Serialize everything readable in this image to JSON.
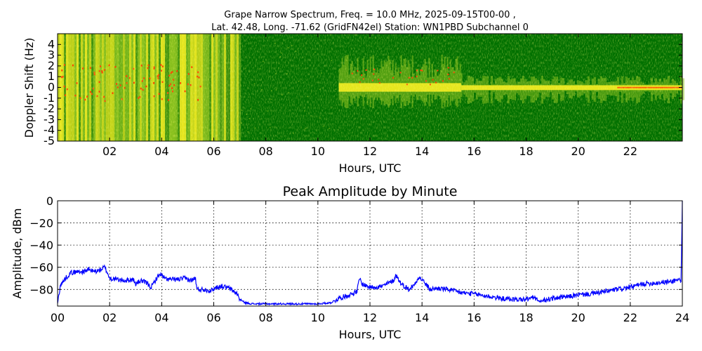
{
  "chart_data": [
    {
      "type": "heatmap",
      "title_lines": [
        "Grape Narrow Spectrum, Freq. = 10.0 MHz, 2025-09-15T00-00 ,",
        "Lat.  42.48, Long. -71.62 (GridFN42el) Station: WN1PBD Subchannel 0"
      ],
      "xlabel": "Hours, UTC",
      "ylabel": "Doppler Shift (Hz)",
      "xlim": [
        0,
        24
      ],
      "ylim": [
        -5,
        5
      ],
      "x_ticks": [
        2,
        4,
        6,
        8,
        10,
        12,
        14,
        16,
        18,
        20,
        22
      ],
      "x_tick_labels": [
        "02",
        "04",
        "06",
        "08",
        "10",
        "12",
        "14",
        "16",
        "18",
        "20",
        "22"
      ],
      "y_ticks": [
        4,
        3,
        2,
        1,
        0,
        -1,
        -2,
        -3,
        -4,
        -5
      ],
      "y_tick_labels": [
        "4",
        "3",
        "2",
        "1",
        "0",
        "-1",
        "-2",
        "-3",
        "-4",
        "-5"
      ],
      "colors": {
        "background": "#007000",
        "mid": "#8cc21e",
        "high": "#e6e61e",
        "peak": "#ff3c00"
      },
      "activity_segments": [
        {
          "start": 0.0,
          "end": 7.0,
          "level": "broadband high"
        },
        {
          "start": 7.0,
          "end": 10.8,
          "level": "quiet"
        },
        {
          "start": 10.8,
          "end": 15.5,
          "level": "moderate spread"
        },
        {
          "start": 15.5,
          "end": 24.0,
          "level": "narrow carrier near 0 Hz"
        }
      ]
    },
    {
      "type": "line",
      "title": "Peak Amplitude by Minute",
      "xlabel": "Hours, UTC",
      "ylabel": "Amplitude, dBm",
      "xlim": [
        0,
        24
      ],
      "ylim": [
        -95,
        0
      ],
      "grid": true,
      "x_ticks": [
        0,
        2,
        4,
        6,
        8,
        10,
        12,
        14,
        16,
        18,
        20,
        22,
        24
      ],
      "x_tick_labels": [
        "00",
        "02",
        "04",
        "06",
        "08",
        "10",
        "12",
        "14",
        "16",
        "18",
        "20",
        "22",
        "24"
      ],
      "y_ticks": [
        0,
        -20,
        -40,
        -60,
        -80
      ],
      "y_tick_labels": [
        "0",
        "−20",
        "−40",
        "−60",
        "−80"
      ],
      "line_color": "#0000ff",
      "x": [
        0.0,
        0.1,
        0.3,
        0.5,
        0.8,
        1.0,
        1.2,
        1.4,
        1.6,
        1.8,
        1.9,
        2.0,
        2.3,
        2.6,
        2.9,
        3.0,
        3.2,
        3.4,
        3.6,
        3.8,
        3.95,
        4.1,
        4.3,
        4.6,
        4.9,
        5.1,
        5.3,
        5.35,
        5.6,
        5.9,
        6.1,
        6.3,
        6.6,
        6.9,
        7.0,
        7.2,
        7.5,
        8.0,
        9.0,
        10.0,
        10.5,
        10.8,
        11.2,
        11.5,
        11.6,
        11.7,
        12.0,
        12.5,
        12.9,
        13.0,
        13.2,
        13.5,
        13.7,
        13.85,
        14.0,
        14.3,
        14.6,
        15.0,
        15.5,
        16.0,
        16.5,
        17.0,
        17.5,
        18.0,
        18.3,
        18.5,
        19.0,
        19.5,
        20.0,
        20.5,
        21.0,
        21.5,
        22.0,
        22.5,
        23.0,
        23.5,
        23.9,
        23.95,
        24.0
      ],
      "y": [
        -93,
        -77,
        -70,
        -65,
        -64,
        -64,
        -62,
        -64,
        -63,
        -60,
        -64,
        -70,
        -71,
        -72,
        -71,
        -75,
        -72,
        -74,
        -78,
        -70,
        -66,
        -70,
        -71,
        -71,
        -70,
        -72,
        -70,
        -80,
        -80,
        -81,
        -78,
        -77,
        -79,
        -84,
        -89,
        -92,
        -93,
        -93,
        -93,
        -93,
        -92,
        -88,
        -85,
        -82,
        -70,
        -75,
        -78,
        -77,
        -72,
        -67,
        -75,
        -80,
        -76,
        -69,
        -71,
        -80,
        -79,
        -80,
        -83,
        -84,
        -86,
        -88,
        -89,
        -89,
        -87,
        -91,
        -88,
        -87,
        -85,
        -84,
        -82,
        -80,
        -78,
        -75,
        -74,
        -73,
        -71,
        -73,
        0
      ]
    }
  ]
}
